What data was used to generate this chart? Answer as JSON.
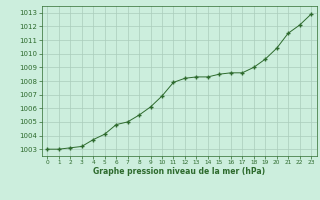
{
  "x": [
    0,
    1,
    2,
    3,
    4,
    5,
    6,
    7,
    8,
    9,
    10,
    11,
    12,
    13,
    14,
    15,
    16,
    17,
    18,
    19,
    20,
    21,
    22,
    23
  ],
  "y": [
    1003.0,
    1003.0,
    1003.1,
    1003.2,
    1003.7,
    1004.1,
    1004.8,
    1005.0,
    1005.5,
    1006.1,
    1006.9,
    1007.9,
    1008.2,
    1008.3,
    1008.3,
    1008.5,
    1008.6,
    1008.6,
    1009.0,
    1009.6,
    1010.4,
    1011.5,
    1012.1,
    1012.9
  ],
  "line_color": "#2d6a2d",
  "marker": "+",
  "bg_color": "#cceedd",
  "grid_color": "#aaccbb",
  "xlabel": "Graphe pression niveau de la mer (hPa)",
  "xlabel_color": "#2d6a2d",
  "tick_color": "#2d6a2d",
  "ylim": [
    1002.5,
    1013.5
  ],
  "yticks": [
    1003,
    1004,
    1005,
    1006,
    1007,
    1008,
    1009,
    1010,
    1011,
    1012,
    1013
  ],
  "xticks": [
    0,
    1,
    2,
    3,
    4,
    5,
    6,
    7,
    8,
    9,
    10,
    11,
    12,
    13,
    14,
    15,
    16,
    17,
    18,
    19,
    20,
    21,
    22,
    23
  ]
}
